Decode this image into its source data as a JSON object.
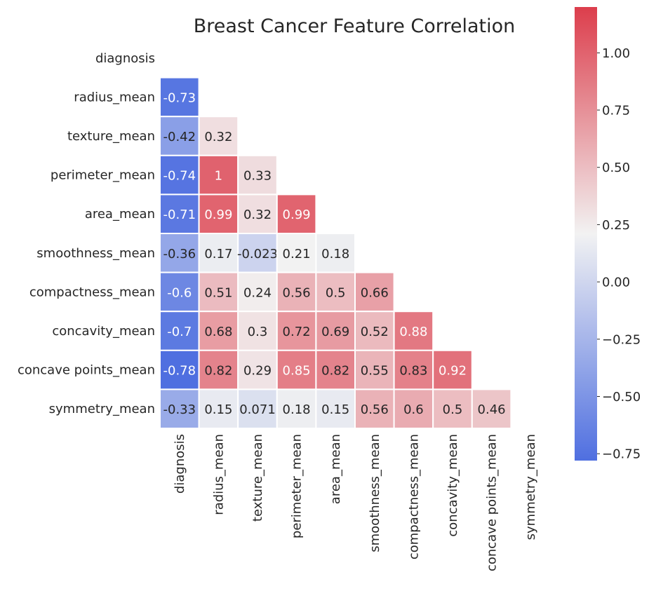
{
  "chart_data": {
    "type": "heatmap",
    "title": "Breast Cancer Feature Correlation",
    "xlabel": "",
    "ylabel": "",
    "rows": [
      "diagnosis",
      "radius_mean",
      "texture_mean",
      "perimeter_mean",
      "area_mean",
      "smoothness_mean",
      "compactness_mean",
      "concavity_mean",
      "concave points_mean",
      "symmetry_mean"
    ],
    "columns": [
      "diagnosis",
      "radius_mean",
      "texture_mean",
      "perimeter_mean",
      "area_mean",
      "smoothness_mean",
      "compactness_mean",
      "concavity_mean",
      "concave points_mean",
      "symmetry_mean"
    ],
    "mask": "upper-triangle-including-diagonal",
    "values": [
      [],
      [
        "-0.73"
      ],
      [
        "-0.42",
        "0.32"
      ],
      [
        "-0.74",
        "1",
        "0.33"
      ],
      [
        "-0.71",
        "0.99",
        "0.32",
        "0.99"
      ],
      [
        "-0.36",
        "0.17",
        "-0.023",
        "0.21",
        "0.18"
      ],
      [
        "-0.6",
        "0.51",
        "0.24",
        "0.56",
        "0.5",
        "0.66"
      ],
      [
        "-0.7",
        "0.68",
        "0.3",
        "0.72",
        "0.69",
        "0.52",
        "0.88"
      ],
      [
        "-0.78",
        "0.82",
        "0.29",
        "0.85",
        "0.82",
        "0.55",
        "0.83",
        "0.92"
      ],
      [
        "-0.33",
        "0.15",
        "0.071",
        "0.18",
        "0.15",
        "0.56",
        "0.6",
        "0.5",
        "0.46"
      ]
    ],
    "colormap": {
      "name": "coolwarm-diverging",
      "vmin": -0.78,
      "vmax": 1.2,
      "center": 0.21,
      "low_color": "#4f6fe0",
      "mid_color": "#f2f2f2",
      "high_color": "#dc3e4c"
    },
    "colorbar": {
      "ticks": [
        1.0,
        0.75,
        0.5,
        0.25,
        0.0,
        -0.25,
        -0.5,
        -0.75
      ],
      "tick_labels": [
        "1.00",
        "0.75",
        "0.50",
        "0.25",
        "0.00",
        "−0.25",
        "−0.50",
        "−0.75"
      ],
      "position": "right"
    },
    "annotation_color_light": "#ffffff",
    "annotation_color_dark": "#262626",
    "cell_border_color": "#ffffff"
  }
}
